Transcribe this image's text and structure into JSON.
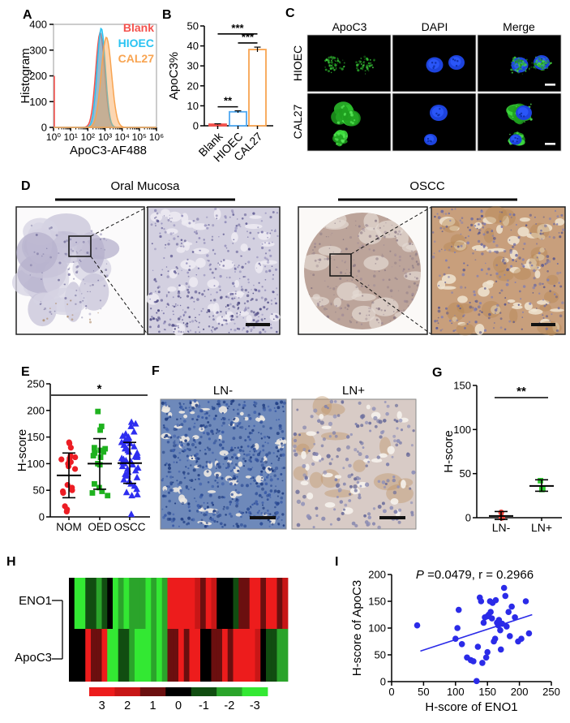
{
  "panels": {
    "A": {
      "label": "A"
    },
    "B": {
      "label": "B"
    },
    "C": {
      "label": "C",
      "columns": [
        "ApoC3",
        "DAPI",
        "Merge"
      ],
      "rows": [
        "HIOEC",
        "CAL27"
      ]
    },
    "D": {
      "label": "D",
      "groups": [
        {
          "title": "Oral Mucosa"
        },
        {
          "title": "OSCC"
        }
      ]
    },
    "E": {
      "label": "E"
    },
    "F": {
      "label": "F",
      "titles": [
        "LN-",
        "LN+"
      ]
    },
    "G": {
      "label": "G"
    },
    "H": {
      "label": "H",
      "rows": [
        "ENO1",
        "ApoC3"
      ]
    },
    "I": {
      "label": "I",
      "annotation_italic": "P",
      "annotation_rest": " =0.0479, r = 0.2966"
    }
  },
  "chart_data": [
    {
      "id": "A",
      "type": "area",
      "subtype": "flow_histogram",
      "xlabel": "ApoC3-AF488",
      "ylabel": "Histogram",
      "ylim": [
        0,
        400
      ],
      "yticks": [
        0,
        100,
        200,
        300,
        400
      ],
      "xscale": "log10",
      "xlim_log": [
        0,
        6
      ],
      "xticklabels": [
        "10⁰",
        "10¹",
        "10²",
        "10³",
        "10⁴",
        "10⁵",
        "10⁶"
      ],
      "legend_position": "top-right",
      "series": [
        {
          "name": "Blank",
          "color": "#F4524D",
          "peak_log": 2.72,
          "peak_height": 368,
          "sigma": 0.26,
          "axis_spike_height": 200
        },
        {
          "name": "HIOEC",
          "color": "#29C3F2",
          "peak_log": 2.78,
          "peak_height": 385,
          "sigma": 0.24
        },
        {
          "name": "CAL27",
          "color": "#F8A451",
          "peak_log": 3.08,
          "peak_height": 350,
          "sigma": 0.3
        }
      ]
    },
    {
      "id": "B",
      "type": "bar",
      "ylabel": "ApoC3%",
      "ylim": [
        0,
        50
      ],
      "yticks": [
        0,
        10,
        20,
        30,
        40,
        50
      ],
      "categories": [
        "Blank",
        "HIOEC",
        "CAL27"
      ],
      "values": [
        0.8,
        7,
        38.2
      ],
      "errors": [
        0.2,
        0.5,
        1.2
      ],
      "bar_colors": [
        "#F4524D",
        "#4FA8F0",
        "#F8A451"
      ],
      "bar_fill": [
        "solid",
        "outline",
        "outline"
      ],
      "significance": [
        {
          "a": 0,
          "b": 2,
          "label": "***",
          "y": 46
        },
        {
          "a": 1,
          "b": 2,
          "label": "***",
          "y": 41.5
        },
        {
          "a": 0,
          "b": 1,
          "label": "**",
          "y": 9.5
        }
      ]
    },
    {
      "id": "E",
      "type": "scatter",
      "subtype": "dot_groups",
      "ylabel": "H-score",
      "ylim": [
        0,
        250
      ],
      "yticks": [
        0,
        50,
        100,
        150,
        200,
        250
      ],
      "groups": [
        {
          "name": "NOM",
          "marker": "circle",
          "color": "#EC1D24",
          "values": [
            140,
            138,
            130,
            115,
            112,
            110,
            108,
            106,
            103,
            100,
            95,
            90,
            60,
            55,
            50,
            48,
            45,
            20,
            14,
            10
          ],
          "mean": 78,
          "err_low": 36,
          "err_high": 120
        },
        {
          "name": "OED",
          "marker": "square",
          "color": "#1FB21F",
          "values": [
            198,
            170,
            163,
            130,
            128,
            125,
            122,
            120,
            115,
            112,
            100,
            98,
            62,
            55,
            48,
            45,
            40
          ],
          "mean": 100,
          "err_low": 52,
          "err_high": 147
        },
        {
          "name": "OSCC",
          "marker": "triangle",
          "color": "#2E2EF0",
          "values": [
            178,
            175,
            170,
            160,
            156,
            152,
            150,
            148,
            146,
            144,
            142,
            140,
            138,
            135,
            132,
            130,
            128,
            125,
            122,
            120,
            118,
            115,
            113,
            112,
            110,
            108,
            106,
            104,
            102,
            100,
            98,
            95,
            92,
            90,
            87,
            84,
            80,
            77,
            74,
            70,
            66,
            62,
            58,
            52,
            46,
            42,
            40,
            5
          ],
          "mean": 101,
          "err_low": 63,
          "err_high": 140
        }
      ],
      "significance": [
        {
          "a": 0,
          "b": 2,
          "label": "*"
        }
      ]
    },
    {
      "id": "G",
      "type": "scatter",
      "subtype": "dot_groups",
      "ylabel": "H-score",
      "ylim": [
        0,
        150
      ],
      "yticks": [
        0,
        50,
        100,
        150
      ],
      "groups": [
        {
          "name": "LN-",
          "marker": "circle",
          "color": "#F0453B",
          "values": [
            6,
            1,
            0
          ],
          "mean": 2,
          "err_low": -2,
          "err_high": 7
        },
        {
          "name": "LN+",
          "marker": "square",
          "color": "#2ECC2E",
          "values": [
            42,
            33,
            32
          ],
          "mean": 36,
          "err_low": 30,
          "err_high": 43
        }
      ],
      "significance": [
        {
          "a": 0,
          "b": 1,
          "label": "**"
        }
      ]
    },
    {
      "id": "H",
      "type": "heatmap",
      "rows": [
        "ENO1",
        "ApoC3"
      ],
      "values": [
        [
          0,
          -3,
          -3,
          -1,
          -1,
          -2,
          -1,
          0,
          -3,
          -2,
          -3,
          -2,
          -2,
          -2,
          -3,
          -2,
          -3,
          -2,
          3,
          3,
          3,
          3,
          3,
          2,
          1,
          3,
          2,
          0,
          0,
          0,
          -1,
          1,
          1,
          3,
          3,
          1,
          3,
          3,
          1,
          2
        ],
        [
          0,
          0,
          0,
          3,
          1,
          1,
          3,
          -3,
          -3,
          -1,
          -1,
          -2,
          -3,
          -3,
          -3,
          -2,
          -3,
          -2,
          1,
          1,
          3,
          1,
          3,
          3,
          0,
          0,
          1,
          1,
          3,
          1,
          3,
          3,
          3,
          3,
          2,
          0,
          -1,
          -1,
          -2,
          -2
        ]
      ],
      "colorbar": {
        "labels": [
          "3",
          "2",
          "1",
          "0",
          "-1",
          "-2",
          "-3"
        ],
        "colors": [
          "#ED1C1C",
          "#C81616",
          "#6B0F0F",
          "#000000",
          "#114D11",
          "#2BA42B",
          "#33E833"
        ]
      }
    },
    {
      "id": "I",
      "type": "scatter",
      "subtype": "xy",
      "annotation": "P =0.0479, r = 0.2966",
      "xlabel": "H-score of ENO1",
      "ylabel": "H-score of ApoC3",
      "xlim": [
        0,
        250
      ],
      "ylim": [
        0,
        200
      ],
      "xticks": [
        0,
        50,
        100,
        150,
        200,
        250
      ],
      "yticks": [
        0,
        50,
        100,
        150,
        200
      ],
      "color": "#2B2BE8",
      "points": [
        [
          40,
          105
        ],
        [
          100,
          80
        ],
        [
          103,
          100
        ],
        [
          105,
          134
        ],
        [
          110,
          70
        ],
        [
          118,
          45
        ],
        [
          124,
          40
        ],
        [
          128,
          38
        ],
        [
          133,
          1
        ],
        [
          135,
          65
        ],
        [
          138,
          157
        ],
        [
          140,
          150
        ],
        [
          142,
          35
        ],
        [
          144,
          110
        ],
        [
          146,
          120
        ],
        [
          148,
          45
        ],
        [
          150,
          55
        ],
        [
          150,
          122
        ],
        [
          152,
          125
        ],
        [
          154,
          150
        ],
        [
          155,
          130
        ],
        [
          157,
          118
        ],
        [
          158,
          147
        ],
        [
          160,
          75
        ],
        [
          162,
          80
        ],
        [
          163,
          152
        ],
        [
          165,
          110
        ],
        [
          167,
          105
        ],
        [
          168,
          115
        ],
        [
          170,
          96
        ],
        [
          171,
          60
        ],
        [
          173,
          108
        ],
        [
          176,
          175
        ],
        [
          178,
          160
        ],
        [
          180,
          103
        ],
        [
          183,
          130
        ],
        [
          185,
          85
        ],
        [
          188,
          140
        ],
        [
          193,
          120
        ],
        [
          198,
          75
        ],
        [
          203,
          80
        ],
        [
          210,
          150
        ],
        [
          215,
          90
        ]
      ],
      "regression": {
        "x1": 45,
        "y1": 57,
        "x2": 220,
        "y2": 125
      }
    }
  ]
}
